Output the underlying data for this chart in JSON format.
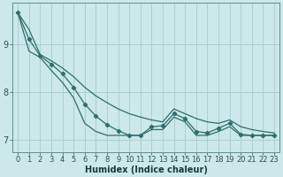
{
  "xlabel": "Humidex (Indice chaleur)",
  "background_color": "#cce8e8",
  "grid_color": "#aad0d0",
  "line_color": "#2e6e6e",
  "xlim_min": -0.5,
  "xlim_max": 23.5,
  "ylim_min": 6.75,
  "ylim_max": 9.85,
  "yticks": [
    7,
    8,
    9
  ],
  "xticks": [
    0,
    1,
    2,
    3,
    4,
    5,
    6,
    7,
    8,
    9,
    10,
    11,
    12,
    13,
    14,
    15,
    16,
    17,
    18,
    19,
    20,
    21,
    22,
    23
  ],
  "series_top": [
    9.65,
    9.3,
    8.78,
    8.65,
    8.5,
    8.32,
    8.1,
    7.92,
    7.78,
    7.65,
    7.55,
    7.48,
    7.42,
    7.38,
    7.65,
    7.55,
    7.45,
    7.38,
    7.35,
    7.42,
    7.28,
    7.22,
    7.18,
    7.15
  ],
  "series_mid": [
    9.65,
    9.1,
    8.75,
    8.58,
    8.38,
    8.1,
    7.75,
    7.5,
    7.32,
    7.2,
    7.1,
    7.1,
    7.28,
    7.3,
    7.55,
    7.45,
    7.18,
    7.15,
    7.25,
    7.35,
    7.12,
    7.1,
    7.1,
    7.1
  ],
  "series_bot": [
    9.65,
    8.85,
    8.72,
    8.45,
    8.2,
    7.88,
    7.35,
    7.18,
    7.1,
    7.1,
    7.1,
    7.1,
    7.22,
    7.22,
    7.48,
    7.38,
    7.1,
    7.1,
    7.18,
    7.28,
    7.1,
    7.1,
    7.1,
    7.1
  ],
  "tick_fontsize": 6,
  "xlabel_fontsize": 7,
  "ytick_fontsize": 7
}
